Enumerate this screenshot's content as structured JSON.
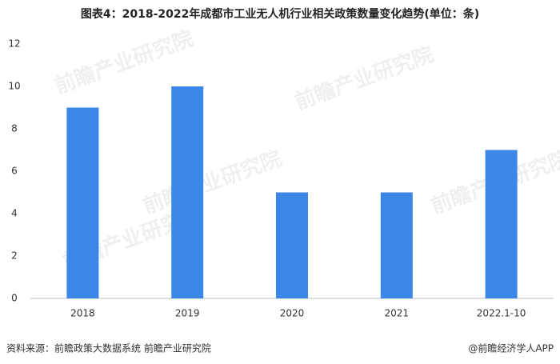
{
  "chart_data": {
    "type": "bar",
    "title": "图表4：2018-2022年成都市工业无人机行业相关政策数量变化趋势(单位：条)",
    "categories": [
      "2018",
      "2019",
      "2020",
      "2021",
      "2022.1-10"
    ],
    "values": [
      9,
      10,
      5,
      5,
      7
    ],
    "color": "#3b86e6",
    "ylim": [
      0,
      12
    ],
    "yticks": [
      0,
      2,
      4,
      6,
      8,
      10,
      12
    ],
    "grid": false,
    "source": "资料来源：前瞻政策大数据系统 前瞻产业研究院",
    "credit": "@前瞻经济学人APP",
    "watermark": "前瞻产业研究院"
  }
}
